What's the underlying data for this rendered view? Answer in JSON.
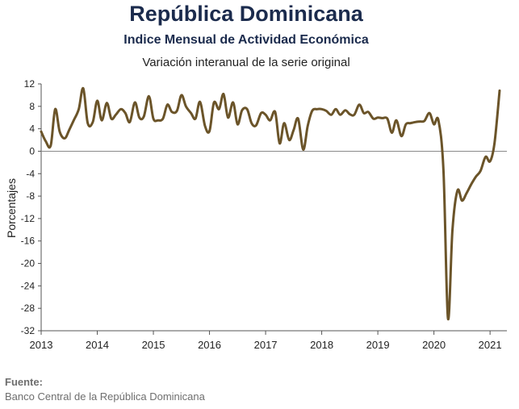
{
  "chart_data": {
    "type": "line",
    "title": "República Dominicana",
    "subtitle": "Indice Mensual de  Actividad Económica",
    "subsubtitle": "Variación interanual de la serie original",
    "ylabel": "Porcentajes",
    "xlabel": "",
    "ylim": [
      -32,
      12
    ],
    "yticks": [
      12,
      8,
      4,
      0,
      -4,
      -8,
      -12,
      -16,
      -20,
      -24,
      -28,
      -32
    ],
    "xlim": [
      2013,
      2021.3
    ],
    "xticks": [
      2013,
      2014,
      2015,
      2016,
      2017,
      2018,
      2019,
      2020,
      2021
    ],
    "grid": false,
    "zero_line": true,
    "line_color": "#6b5429",
    "series": [
      {
        "points": [
          [
            2013.0,
            3.5
          ],
          [
            2013.08,
            1.8
          ],
          [
            2013.17,
            1.0
          ],
          [
            2013.25,
            7.5
          ],
          [
            2013.33,
            3.5
          ],
          [
            2013.42,
            2.3
          ],
          [
            2013.5,
            3.8
          ],
          [
            2013.58,
            5.5
          ],
          [
            2013.67,
            7.5
          ],
          [
            2013.75,
            11.2
          ],
          [
            2013.83,
            5.0
          ],
          [
            2013.92,
            5.2
          ],
          [
            2014.0,
            9.0
          ],
          [
            2014.08,
            5.5
          ],
          [
            2014.17,
            8.6
          ],
          [
            2014.25,
            5.8
          ],
          [
            2014.33,
            6.5
          ],
          [
            2014.42,
            7.5
          ],
          [
            2014.5,
            6.8
          ],
          [
            2014.58,
            5.2
          ],
          [
            2014.67,
            8.7
          ],
          [
            2014.75,
            6.0
          ],
          [
            2014.83,
            6.2
          ],
          [
            2014.92,
            9.8
          ],
          [
            2015.0,
            5.8
          ],
          [
            2015.08,
            5.5
          ],
          [
            2015.17,
            5.8
          ],
          [
            2015.25,
            8.3
          ],
          [
            2015.33,
            7.0
          ],
          [
            2015.42,
            7.2
          ],
          [
            2015.5,
            10.0
          ],
          [
            2015.58,
            8.0
          ],
          [
            2015.67,
            6.8
          ],
          [
            2015.75,
            5.8
          ],
          [
            2015.83,
            8.8
          ],
          [
            2015.92,
            4.5
          ],
          [
            2016.0,
            3.6
          ],
          [
            2016.08,
            8.7
          ],
          [
            2016.17,
            7.5
          ],
          [
            2016.25,
            10.2
          ],
          [
            2016.33,
            6.0
          ],
          [
            2016.42,
            8.7
          ],
          [
            2016.5,
            4.8
          ],
          [
            2016.58,
            7.3
          ],
          [
            2016.67,
            7.5
          ],
          [
            2016.75,
            5.0
          ],
          [
            2016.83,
            4.6
          ],
          [
            2016.92,
            6.8
          ],
          [
            2017.0,
            6.5
          ],
          [
            2017.08,
            5.5
          ],
          [
            2017.17,
            7.0
          ],
          [
            2017.25,
            1.4
          ],
          [
            2017.33,
            5.0
          ],
          [
            2017.42,
            2.0
          ],
          [
            2017.5,
            3.8
          ],
          [
            2017.58,
            5.8
          ],
          [
            2017.67,
            0.3
          ],
          [
            2017.75,
            4.5
          ],
          [
            2017.83,
            7.2
          ],
          [
            2017.92,
            7.5
          ],
          [
            2018.0,
            7.5
          ],
          [
            2018.08,
            7.2
          ],
          [
            2018.17,
            6.5
          ],
          [
            2018.25,
            7.5
          ],
          [
            2018.33,
            6.5
          ],
          [
            2018.42,
            7.3
          ],
          [
            2018.5,
            6.6
          ],
          [
            2018.58,
            6.5
          ],
          [
            2018.67,
            8.3
          ],
          [
            2018.75,
            6.8
          ],
          [
            2018.83,
            7.0
          ],
          [
            2018.92,
            5.8
          ],
          [
            2019.0,
            6.0
          ],
          [
            2019.08,
            5.9
          ],
          [
            2019.17,
            5.8
          ],
          [
            2019.25,
            3.3
          ],
          [
            2019.33,
            5.5
          ],
          [
            2019.42,
            2.7
          ],
          [
            2019.5,
            4.8
          ],
          [
            2019.58,
            5.0
          ],
          [
            2019.67,
            5.2
          ],
          [
            2019.75,
            5.3
          ],
          [
            2019.83,
            5.4
          ],
          [
            2019.92,
            6.8
          ],
          [
            2020.0,
            4.8
          ],
          [
            2020.08,
            5.5
          ],
          [
            2020.17,
            -3.5
          ],
          [
            2020.25,
            -29.8
          ],
          [
            2020.33,
            -14.0
          ],
          [
            2020.42,
            -7.0
          ],
          [
            2020.5,
            -8.8
          ],
          [
            2020.58,
            -7.5
          ],
          [
            2020.67,
            -5.8
          ],
          [
            2020.75,
            -4.5
          ],
          [
            2020.83,
            -3.5
          ],
          [
            2020.92,
            -1.0
          ],
          [
            2021.0,
            -1.8
          ],
          [
            2021.08,
            1.5
          ],
          [
            2021.17,
            10.8
          ]
        ]
      }
    ]
  },
  "source": {
    "label": "Fuente:",
    "text": "Banco Central de la República Dominicana"
  }
}
